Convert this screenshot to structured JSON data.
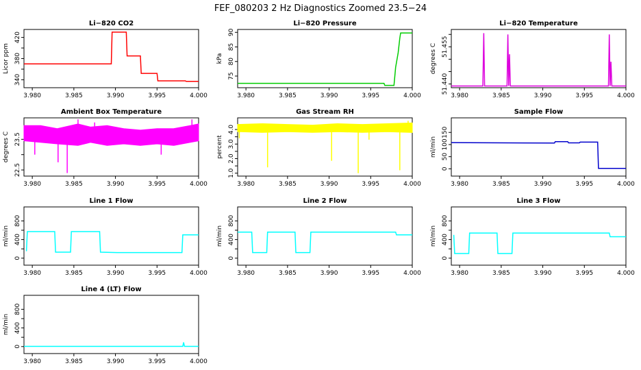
{
  "title": "FEF_080203  2 Hz Diagnostics Zoomed 23.5−24",
  "chart_data": [
    {
      "type": "line",
      "title": "Li−820 CO2",
      "ylabel": "Licor ppm",
      "color": "#ff0000",
      "xlim": [
        3.979,
        4.0
      ],
      "ylim": [
        325,
        435
      ],
      "xticks": [
        3.98,
        3.985,
        3.99,
        3.995,
        4.0
      ],
      "xtick_labels": [
        "3.980",
        "3.985",
        "3.990",
        "3.995",
        "4.000"
      ],
      "yticks": [
        340,
        360,
        380,
        400,
        420
      ],
      "ytick_labels": [
        "340",
        "380",
        "420"
      ],
      "points": [
        [
          3.979,
          370
        ],
        [
          3.9895,
          370
        ],
        [
          3.9896,
          430
        ],
        [
          3.9913,
          430
        ],
        [
          3.9914,
          385
        ],
        [
          3.993,
          385
        ],
        [
          3.9931,
          352
        ],
        [
          3.995,
          352
        ],
        [
          3.9951,
          338
        ],
        [
          3.9984,
          338
        ],
        [
          3.9985,
          337
        ],
        [
          4.0,
          337
        ]
      ]
    },
    {
      "type": "line",
      "title": "Li−820 Pressure",
      "ylabel": "kPa",
      "color": "#00cc00",
      "xlim": [
        3.979,
        4.0
      ],
      "ylim": [
        71,
        91
      ],
      "xticks": [
        3.98,
        3.985,
        3.99,
        3.995,
        4.0
      ],
      "xtick_labels": [
        "3.980",
        "3.985",
        "3.990",
        "3.995",
        "4.000"
      ],
      "yticks": [
        75,
        80,
        85,
        90
      ],
      "ytick_labels": [
        "75",
        "80",
        "85",
        "90"
      ],
      "points": [
        [
          3.979,
          72.5
        ],
        [
          3.9966,
          72.5
        ],
        [
          3.9967,
          71.8
        ],
        [
          3.9978,
          71.8
        ],
        [
          3.998,
          78
        ],
        [
          3.9983,
          83
        ],
        [
          3.9985,
          88
        ],
        [
          3.9986,
          89.8
        ],
        [
          4.0,
          89.8
        ]
      ]
    },
    {
      "type": "line",
      "title": "Li−820 Temperature",
      "ylabel": "degrees C",
      "color": "#dd00dd",
      "xlim": [
        3.979,
        4.0
      ],
      "ylim": [
        51.4385,
        51.462
      ],
      "xticks": [
        3.98,
        3.985,
        3.99,
        3.995,
        4.0
      ],
      "xtick_labels": [
        "3.980",
        "3.985",
        "3.990",
        "3.995",
        "4.000"
      ],
      "yticks": [
        51.44,
        51.445,
        51.45,
        51.455,
        51.46
      ],
      "ytick_labels": [
        "51.440",
        "51.455"
      ],
      "points": [
        [
          3.979,
          51.4392
        ],
        [
          3.9828,
          51.4392
        ],
        [
          3.9829,
          51.4605
        ],
        [
          3.983,
          51.4392
        ],
        [
          3.9857,
          51.4392
        ],
        [
          3.9858,
          51.46
        ],
        [
          3.9859,
          51.4392
        ],
        [
          3.986,
          51.452
        ],
        [
          3.9861,
          51.4392
        ],
        [
          3.9979,
          51.4392
        ],
        [
          3.998,
          51.46
        ],
        [
          3.9981,
          51.4392
        ],
        [
          3.9982,
          51.449
        ],
        [
          3.9983,
          51.4392
        ],
        [
          4.0,
          51.4392
        ]
      ]
    },
    {
      "type": "line",
      "title": "Ambient Box Temperature",
      "ylabel": "degrees C",
      "color": "#ff00ff",
      "xlim": [
        3.979,
        4.0
      ],
      "ylim": [
        22.3,
        24.2
      ],
      "xticks": [
        3.98,
        3.985,
        3.99,
        3.995,
        4.0
      ],
      "xtick_labels": [
        "3.980",
        "3.985",
        "3.990",
        "3.995",
        "4.000"
      ],
      "yticks": [
        22.5,
        23.0,
        23.5
      ],
      "ytick_labels": [
        "22.5",
        "23.5"
      ],
      "band": [
        [
          3.979,
          23.45,
          23.95
        ],
        [
          3.981,
          23.4,
          23.95
        ],
        [
          3.983,
          23.35,
          23.85
        ],
        [
          3.9855,
          23.3,
          24.0
        ],
        [
          3.987,
          23.4,
          23.9
        ],
        [
          3.989,
          23.3,
          23.95
        ],
        [
          3.991,
          23.35,
          23.85
        ],
        [
          3.993,
          23.3,
          23.8
        ],
        [
          3.995,
          23.35,
          23.85
        ],
        [
          3.997,
          23.3,
          23.85
        ],
        [
          3.999,
          23.4,
          23.95
        ],
        [
          4.0,
          23.45,
          24.0
        ]
      ],
      "spikes": [
        [
          3.9803,
          23.0
        ],
        [
          3.9831,
          22.75
        ],
        [
          3.9842,
          22.4
        ],
        [
          3.9855,
          24.15
        ],
        [
          3.9875,
          24.05
        ],
        [
          3.9955,
          23.0
        ],
        [
          3.9992,
          24.15
        ]
      ]
    },
    {
      "type": "line",
      "title": "Gas Stream RH",
      "ylabel": "percent",
      "color": "#ffff00",
      "xlim": [
        3.979,
        4.0
      ],
      "ylim": [
        0.8,
        4.8
      ],
      "xticks": [
        3.98,
        3.985,
        3.99,
        3.995,
        4.0
      ],
      "xtick_labels": [
        "3.980",
        "3.985",
        "3.990",
        "3.995",
        "4.000"
      ],
      "yticks": [
        1.0,
        1.5,
        2.0,
        2.5,
        3.0,
        3.5,
        4.0
      ],
      "ytick_labels": [
        "1.0",
        "2.0",
        "3.0",
        "4.0"
      ],
      "band": [
        [
          3.979,
          3.85,
          4.35
        ],
        [
          3.982,
          3.8,
          4.4
        ],
        [
          3.985,
          3.85,
          4.35
        ],
        [
          3.988,
          3.8,
          4.3
        ],
        [
          3.991,
          3.85,
          4.4
        ],
        [
          3.994,
          3.8,
          4.35
        ],
        [
          3.997,
          3.85,
          4.4
        ],
        [
          4.0,
          3.8,
          4.45
        ]
      ],
      "spikes": [
        [
          3.9792,
          3.4
        ],
        [
          3.9826,
          1.4
        ],
        [
          3.9903,
          1.85
        ],
        [
          3.9935,
          1.0
        ],
        [
          3.9948,
          3.3
        ],
        [
          3.9985,
          1.2
        ],
        [
          3.9995,
          4.6
        ]
      ]
    },
    {
      "type": "line",
      "title": "Sample Flow",
      "ylabel": "ml/min",
      "color": "#0000cc",
      "xlim": [
        3.979,
        4.0
      ],
      "ylim": [
        -30,
        210
      ],
      "xticks": [
        3.98,
        3.985,
        3.99,
        3.995,
        4.0
      ],
      "xtick_labels": [
        "3.980",
        "3.985",
        "3.990",
        "3.995",
        "4.000"
      ],
      "yticks": [
        0,
        50,
        100,
        150
      ],
      "ytick_labels": [
        "0",
        "50",
        "100",
        "150"
      ],
      "points": [
        [
          3.979,
          108
        ],
        [
          3.9914,
          106
        ],
        [
          3.9915,
          112
        ],
        [
          3.993,
          112
        ],
        [
          3.9931,
          107
        ],
        [
          3.9944,
          107
        ],
        [
          3.9945,
          110
        ],
        [
          3.9966,
          110
        ],
        [
          3.9967,
          2
        ],
        [
          4.0,
          2
        ]
      ]
    },
    {
      "type": "line",
      "title": "Line 1 Flow",
      "ylabel": "ml/min",
      "color": "#00ffff",
      "xlim": [
        3.979,
        4.0
      ],
      "ylim": [
        -150,
        1100
      ],
      "xticks": [
        3.98,
        3.985,
        3.99,
        3.995,
        4.0
      ],
      "xtick_labels": [
        "3.980",
        "3.985",
        "3.990",
        "3.995",
        "4.000"
      ],
      "yticks": [
        0,
        200,
        400,
        600,
        800
      ],
      "ytick_labels": [
        "0",
        "400",
        "800"
      ],
      "points": [
        [
          3.9793,
          150
        ],
        [
          3.9794,
          570
        ],
        [
          3.9827,
          570
        ],
        [
          3.9828,
          130
        ],
        [
          3.9846,
          130
        ],
        [
          3.9847,
          570
        ],
        [
          3.9881,
          570
        ],
        [
          3.9882,
          130
        ],
        [
          3.9902,
          120
        ],
        [
          3.998,
          120
        ],
        [
          3.9981,
          500
        ],
        [
          4.0,
          500
        ]
      ]
    },
    {
      "type": "line",
      "title": "Line 2 Flow",
      "ylabel": "ml/min",
      "color": "#00ffff",
      "xlim": [
        3.979,
        4.0
      ],
      "ylim": [
        -150,
        1100
      ],
      "xticks": [
        3.98,
        3.985,
        3.99,
        3.995,
        4.0
      ],
      "xtick_labels": [
        "3.980",
        "3.985",
        "3.990",
        "3.995",
        "4.000"
      ],
      "yticks": [
        0,
        200,
        400,
        600,
        800
      ],
      "ytick_labels": [
        "0",
        "400",
        "800"
      ],
      "points": [
        [
          3.979,
          560
        ],
        [
          3.9807,
          560
        ],
        [
          3.9808,
          120
        ],
        [
          3.9825,
          120
        ],
        [
          3.9826,
          560
        ],
        [
          3.9859,
          560
        ],
        [
          3.986,
          120
        ],
        [
          3.9877,
          120
        ],
        [
          3.9878,
          560
        ],
        [
          3.998,
          560
        ],
        [
          3.9981,
          500
        ],
        [
          4.0,
          500
        ]
      ]
    },
    {
      "type": "line",
      "title": "Line 3 Flow",
      "ylabel": "ml/min",
      "color": "#00ffff",
      "xlim": [
        3.979,
        4.0
      ],
      "ylim": [
        -150,
        1100
      ],
      "xticks": [
        3.98,
        3.985,
        3.99,
        3.995,
        4.0
      ],
      "xtick_labels": [
        "3.980",
        "3.985",
        "3.990",
        "3.995",
        "4.000"
      ],
      "yticks": [
        0,
        200,
        400,
        600,
        800
      ],
      "ytick_labels": [
        "0",
        "400",
        "800"
      ],
      "points": [
        [
          3.9793,
          500
        ],
        [
          3.9794,
          100
        ],
        [
          3.9811,
          100
        ],
        [
          3.9812,
          540
        ],
        [
          3.9845,
          540
        ],
        [
          3.9846,
          100
        ],
        [
          3.9863,
          100
        ],
        [
          3.9864,
          540
        ],
        [
          3.998,
          540
        ],
        [
          3.9981,
          460
        ],
        [
          4.0,
          460
        ]
      ]
    },
    {
      "type": "line",
      "title": "Line 4 (LT) Flow",
      "ylabel": "ml/min",
      "color": "#00ffff",
      "xlim": [
        3.979,
        4.0
      ],
      "ylim": [
        -150,
        1100
      ],
      "xticks": [
        3.98,
        3.985,
        3.99,
        3.995,
        4.0
      ],
      "xtick_labels": [
        "3.980",
        "3.985",
        "3.990",
        "3.995",
        "4.000"
      ],
      "yticks": [
        0,
        200,
        400,
        600,
        800
      ],
      "ytick_labels": [
        "0",
        "400",
        "800"
      ],
      "points": [
        [
          3.979,
          5
        ],
        [
          3.9981,
          5
        ],
        [
          3.9982,
          90
        ],
        [
          3.9983,
          5
        ],
        [
          4.0,
          5
        ]
      ]
    }
  ]
}
